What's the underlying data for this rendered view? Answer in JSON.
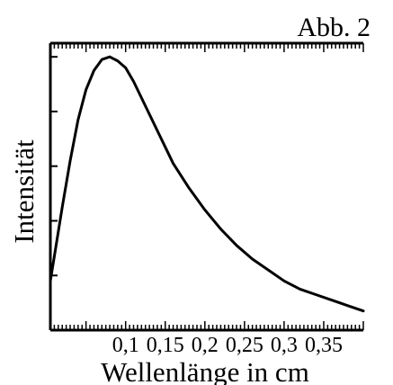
{
  "figure_label": "Abb. 2",
  "chart_data": {
    "type": "line",
    "title": "",
    "xlabel": "Wellenlänge in cm",
    "ylabel": "Intensität",
    "xlim": [
      0.005,
      0.4
    ],
    "ylim": [
      0,
      1.05
    ],
    "x_ticks": [
      0.1,
      0.15,
      0.2,
      0.25,
      0.3,
      0.35
    ],
    "x_tick_labels": [
      "0,1",
      "0,15",
      "0,2",
      "0,25",
      "0,3",
      "0,35"
    ],
    "y_tick_labels_shown": false,
    "grid": false,
    "legend": "none",
    "line_color": "#000000",
    "series": [
      {
        "x": [
          0.005,
          0.01,
          0.02,
          0.03,
          0.04,
          0.05,
          0.06,
          0.07,
          0.08,
          0.09,
          0.1,
          0.11,
          0.12,
          0.13,
          0.14,
          0.15,
          0.16,
          0.18,
          0.2,
          0.22,
          0.24,
          0.26,
          0.28,
          0.3,
          0.32,
          0.34,
          0.36,
          0.38,
          0.4
        ],
        "y": [
          0.18,
          0.27,
          0.45,
          0.62,
          0.77,
          0.88,
          0.95,
          0.99,
          1.0,
          0.985,
          0.96,
          0.91,
          0.85,
          0.79,
          0.73,
          0.67,
          0.61,
          0.52,
          0.44,
          0.37,
          0.31,
          0.26,
          0.22,
          0.18,
          0.15,
          0.13,
          0.11,
          0.09,
          0.07
        ]
      }
    ]
  }
}
